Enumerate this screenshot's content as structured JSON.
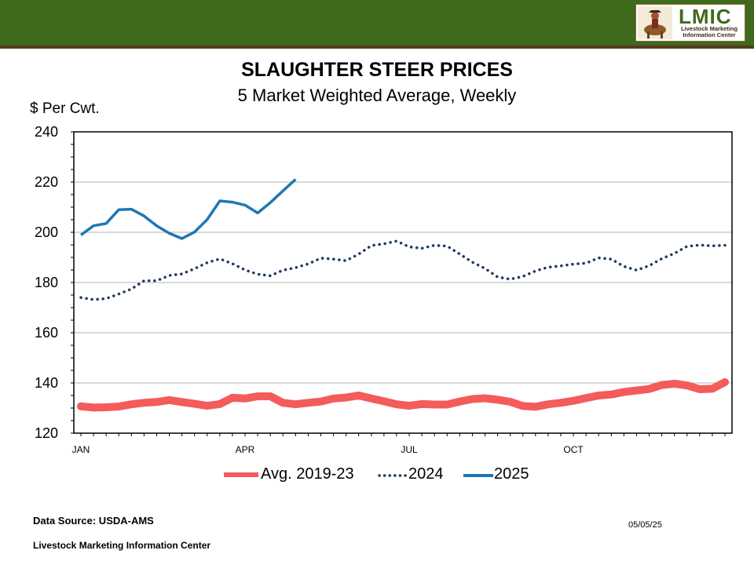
{
  "header": {
    "logo_text": "LMIC",
    "logo_subtitle": "Livestock Marketing Information Center",
    "brand_color": "#3f6a1c"
  },
  "chart_data": {
    "type": "line",
    "title": "SLAUGHTER STEER PRICES",
    "subtitle": "5 Market Weighted Average, Weekly",
    "ylabel": "$ Per Cwt.",
    "xlabel": "",
    "ylim": [
      120,
      240
    ],
    "yticks": [
      120,
      140,
      160,
      180,
      200,
      220,
      240
    ],
    "x_ticks": [
      "JAN",
      "APR",
      "JUL",
      "OCT"
    ],
    "x_tick_weeks": [
      1,
      14,
      27,
      40
    ],
    "weeks_total": 52,
    "grid": "horizontal",
    "legend_position": "bottom",
    "series": [
      {
        "name": "Avg. 2019-23",
        "style": "thick-solid",
        "color": "#f45b5b",
        "weeks": [
          1,
          2,
          3,
          4,
          5,
          6,
          7,
          8,
          9,
          10,
          11,
          12,
          13,
          14,
          15,
          16,
          17,
          18,
          19,
          20,
          21,
          22,
          23,
          24,
          25,
          26,
          27,
          28,
          29,
          30,
          31,
          32,
          33,
          34,
          35,
          36,
          37,
          38,
          39,
          40,
          41,
          42,
          43,
          44,
          45,
          46,
          47,
          48,
          49,
          50,
          51,
          52
        ],
        "values": [
          130.7,
          130.2,
          130.3,
          130.6,
          131.5,
          132.1,
          132.4,
          133.2,
          132.4,
          131.7,
          130.9,
          131.6,
          134.1,
          133.8,
          134.7,
          134.7,
          132.1,
          131.5,
          132.1,
          132.6,
          133.8,
          134.2,
          135.0,
          133.8,
          132.7,
          131.5,
          130.9,
          131.6,
          131.4,
          131.4,
          132.6,
          133.6,
          133.9,
          133.3,
          132.5,
          130.8,
          130.5,
          131.5,
          132.1,
          132.9,
          134.0,
          135.0,
          135.4,
          136.4,
          137.0,
          137.6,
          139.2,
          139.7,
          139.0,
          137.5,
          137.7,
          140.3
        ]
      },
      {
        "name": "2024",
        "style": "dotted",
        "color": "#1f3864",
        "weeks": [
          1,
          2,
          3,
          4,
          5,
          6,
          7,
          8,
          9,
          10,
          11,
          12,
          13,
          14,
          15,
          16,
          17,
          18,
          19,
          20,
          21,
          22,
          23,
          24,
          25,
          26,
          27,
          28,
          29,
          30,
          31,
          32,
          33,
          34,
          35,
          36,
          37,
          38,
          39,
          40,
          41,
          42,
          43,
          44,
          45,
          46,
          47,
          48,
          49,
          50,
          51,
          52
        ],
        "values": [
          174.0,
          173.2,
          173.6,
          175.4,
          177.4,
          180.7,
          180.7,
          182.8,
          183.4,
          185.5,
          187.9,
          189.4,
          187.5,
          185.0,
          183.3,
          182.7,
          184.9,
          185.9,
          187.4,
          189.7,
          189.3,
          188.7,
          191.3,
          194.7,
          195.4,
          196.5,
          194.2,
          193.6,
          194.8,
          194.5,
          191.3,
          188.1,
          185.6,
          182.2,
          181.3,
          182.4,
          184.6,
          186.1,
          186.6,
          187.3,
          187.7,
          189.8,
          189.3,
          186.4,
          184.9,
          186.7,
          189.5,
          191.6,
          194.4,
          194.9,
          194.6,
          194.8
        ]
      },
      {
        "name": "2025",
        "style": "solid",
        "color": "#1f77b4",
        "weeks": [
          1,
          2,
          3,
          4,
          5,
          6,
          7,
          8,
          9,
          10,
          11,
          12,
          13,
          14,
          15,
          16,
          17,
          18
        ],
        "values": [
          198.9,
          202.6,
          203.5,
          209.0,
          209.2,
          206.5,
          202.6,
          199.6,
          197.5,
          200.1,
          205.1,
          212.5,
          212.0,
          210.8,
          207.7,
          211.8,
          216.5,
          221.1
        ]
      }
    ]
  },
  "footer": {
    "source": "Data Source:  USDA-AMS",
    "date": "05/05/25",
    "org": "Livestock Marketing Information Center"
  }
}
